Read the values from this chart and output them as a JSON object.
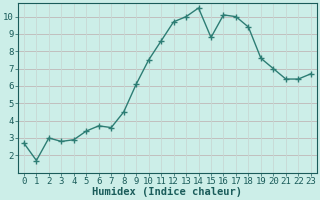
{
  "x": [
    0,
    1,
    2,
    3,
    4,
    5,
    6,
    7,
    8,
    9,
    10,
    11,
    12,
    13,
    14,
    15,
    16,
    17,
    18,
    19,
    20,
    21,
    22,
    23
  ],
  "y": [
    2.7,
    1.7,
    3.0,
    2.8,
    2.9,
    3.4,
    3.7,
    3.6,
    4.5,
    6.1,
    7.5,
    8.6,
    9.7,
    10.0,
    10.5,
    8.8,
    10.1,
    10.0,
    9.4,
    7.6,
    7.0,
    6.4,
    6.4,
    6.7
  ],
  "line_color": "#2d7d74",
  "marker": "+",
  "marker_size": 4,
  "bg_color": "#cceee8",
  "grid_color_h": "#c0b8b8",
  "grid_color_v": "#c8d8d4",
  "xlabel": "Humidex (Indice chaleur)",
  "xlim": [
    -0.5,
    23.5
  ],
  "ylim": [
    1.0,
    10.8
  ],
  "yticks": [
    2,
    3,
    4,
    5,
    6,
    7,
    8,
    9,
    10
  ],
  "xticks": [
    0,
    1,
    2,
    3,
    4,
    5,
    6,
    7,
    8,
    9,
    10,
    11,
    12,
    13,
    14,
    15,
    16,
    17,
    18,
    19,
    20,
    21,
    22,
    23
  ],
  "xlabel_color": "#1a5c5a",
  "tick_color": "#1a5c5a",
  "xlabel_fontsize": 7.5,
  "tick_fontsize": 6.5,
  "linewidth": 1.0
}
